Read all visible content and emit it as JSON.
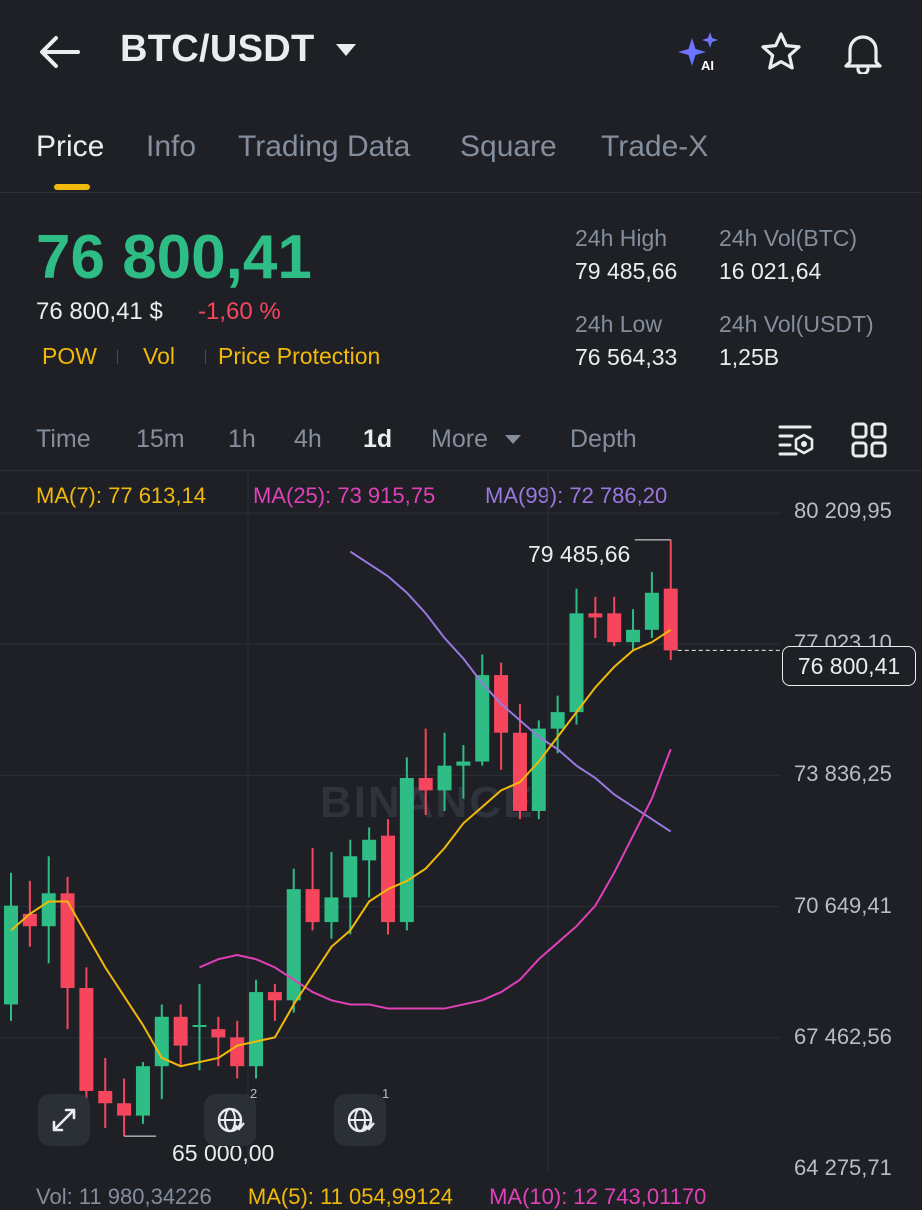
{
  "header": {
    "title": "BTC/USDT",
    "ai_label": "AI"
  },
  "tabs": [
    {
      "label": "Price",
      "active": true
    },
    {
      "label": "Info",
      "active": false
    },
    {
      "label": "Trading Data",
      "active": false
    },
    {
      "label": "Square",
      "active": false
    },
    {
      "label": "Trade-X",
      "active": false
    }
  ],
  "price": {
    "last": "76 800,41",
    "usd": "76 800,41 $",
    "change_pct": "-1,60 %",
    "tags": [
      "POW",
      "Vol",
      "Price Protection"
    ]
  },
  "stats": {
    "high_label": "24h High",
    "high": "79 485,66",
    "vol_btc_label": "24h Vol(BTC)",
    "vol_btc": "16 021,64",
    "low_label": "24h Low",
    "low": "76 564,33",
    "vol_usdt_label": "24h Vol(USDT)",
    "vol_usdt": "1,25B"
  },
  "intervals": {
    "time": "Time",
    "m15": "15m",
    "h1": "1h",
    "h4": "4h",
    "d1": "1d",
    "more": "More",
    "depth": "Depth",
    "selected": "1d"
  },
  "ma_legend": {
    "ma7": "MA(7): 77 613,14",
    "ma25": "MA(25): 73 915,75",
    "ma99": "MA(99): 72 786,20"
  },
  "colors": {
    "up": "#2ebd85",
    "down": "#f6465d",
    "accent": "#f0b90b",
    "ma7": "#f0b90b",
    "ma25": "#e040b8",
    "ma99": "#9a78e0"
  },
  "axis": {
    "ticks": [
      "80 209,95",
      "77 023,10",
      "73 836,25",
      "70 649,41",
      "67 462,56",
      "64 275,71"
    ],
    "current_price": "76 800,41",
    "high_marker": "79 485,66",
    "low_marker": "65 000,00"
  },
  "watermark": "BINANCE",
  "floating": {
    "globe_badge_1": "2",
    "globe_badge_2": "1"
  },
  "volume_row": {
    "vol": "Vol: 11 980,34226",
    "ma5": "MA(5): 11 054,99124",
    "ma10": "MA(10): 12 743,01170"
  },
  "chart_data": {
    "type": "candlestick",
    "interval": "1d",
    "y_range": [
      64275.71,
      80209.95
    ],
    "candles": [
      {
        "o": 68200,
        "h": 71400,
        "l": 67800,
        "c": 70600
      },
      {
        "o": 70400,
        "h": 71200,
        "l": 69600,
        "c": 70100
      },
      {
        "o": 70100,
        "h": 71800,
        "l": 69200,
        "c": 70900
      },
      {
        "o": 70900,
        "h": 71300,
        "l": 67600,
        "c": 68600
      },
      {
        "o": 68600,
        "h": 69100,
        "l": 65700,
        "c": 66100
      },
      {
        "o": 66100,
        "h": 66900,
        "l": 65200,
        "c": 65800
      },
      {
        "o": 65800,
        "h": 66400,
        "l": 65000,
        "c": 65500
      },
      {
        "o": 65500,
        "h": 66800,
        "l": 65300,
        "c": 66700
      },
      {
        "o": 66700,
        "h": 68200,
        "l": 65900,
        "c": 67900
      },
      {
        "o": 67900,
        "h": 68200,
        "l": 66700,
        "c": 67200
      },
      {
        "o": 67700,
        "h": 68700,
        "l": 66600,
        "c": 67700
      },
      {
        "o": 67600,
        "h": 67900,
        "l": 66700,
        "c": 67400
      },
      {
        "o": 67400,
        "h": 67800,
        "l": 66400,
        "c": 66700
      },
      {
        "o": 66700,
        "h": 68800,
        "l": 66400,
        "c": 68500
      },
      {
        "o": 68500,
        "h": 68700,
        "l": 67800,
        "c": 68300
      },
      {
        "o": 68300,
        "h": 71500,
        "l": 68000,
        "c": 71000
      },
      {
        "o": 71000,
        "h": 72000,
        "l": 70000,
        "c": 70200
      },
      {
        "o": 70200,
        "h": 71900,
        "l": 69800,
        "c": 70800
      },
      {
        "o": 70800,
        "h": 72200,
        "l": 69900,
        "c": 71800
      },
      {
        "o": 71700,
        "h": 72500,
        "l": 70800,
        "c": 72200
      },
      {
        "o": 72300,
        "h": 72700,
        "l": 69900,
        "c": 70200
      },
      {
        "o": 70200,
        "h": 74200,
        "l": 70000,
        "c": 73700
      },
      {
        "o": 73700,
        "h": 74900,
        "l": 72800,
        "c": 73400
      },
      {
        "o": 73400,
        "h": 74800,
        "l": 72900,
        "c": 74000
      },
      {
        "o": 74000,
        "h": 74500,
        "l": 73200,
        "c": 74100
      },
      {
        "o": 74100,
        "h": 76700,
        "l": 74000,
        "c": 76200
      },
      {
        "o": 76200,
        "h": 76500,
        "l": 73900,
        "c": 74800
      },
      {
        "o": 74800,
        "h": 75500,
        "l": 72700,
        "c": 72900
      },
      {
        "o": 72900,
        "h": 75100,
        "l": 72700,
        "c": 74900
      },
      {
        "o": 74900,
        "h": 75700,
        "l": 74300,
        "c": 75300
      },
      {
        "o": 75300,
        "h": 78300,
        "l": 75000,
        "c": 77700
      },
      {
        "o": 77700,
        "h": 78100,
        "l": 77100,
        "c": 77600
      },
      {
        "o": 77700,
        "h": 78100,
        "l": 76900,
        "c": 77000
      },
      {
        "o": 77000,
        "h": 77800,
        "l": 76800,
        "c": 77300
      },
      {
        "o": 77300,
        "h": 78700,
        "l": 77100,
        "c": 78200
      },
      {
        "o": 78300,
        "h": 79485.66,
        "l": 76564.33,
        "c": 76800.41
      }
    ],
    "ma7": [
      70000,
      70400,
      70700,
      70700,
      69900,
      69100,
      68400,
      67700,
      66900,
      66700,
      66800,
      66900,
      67200,
      67300,
      67400,
      68200,
      68900,
      69600,
      70000,
      70700,
      71000,
      71200,
      71500,
      72000,
      72600,
      73000,
      73400,
      73600,
      74100,
      74700,
      75300,
      75900,
      76400,
      76800,
      77000,
      77300
    ],
    "ma25": [
      69100,
      69300,
      69400,
      69300,
      69100,
      68800,
      68500,
      68300,
      68200,
      68200,
      68100,
      68100,
      68100,
      68100,
      68200,
      68300,
      68500,
      68800,
      69300,
      69700,
      70100,
      70600,
      71400,
      72300,
      73200,
      74400
    ],
    "ma99": [
      79200,
      78900,
      78600,
      78200,
      77700,
      77100,
      76600,
      76000,
      75500,
      75100,
      74700,
      74400,
      74000,
      73700,
      73300,
      73000,
      72700,
      72400
    ]
  }
}
